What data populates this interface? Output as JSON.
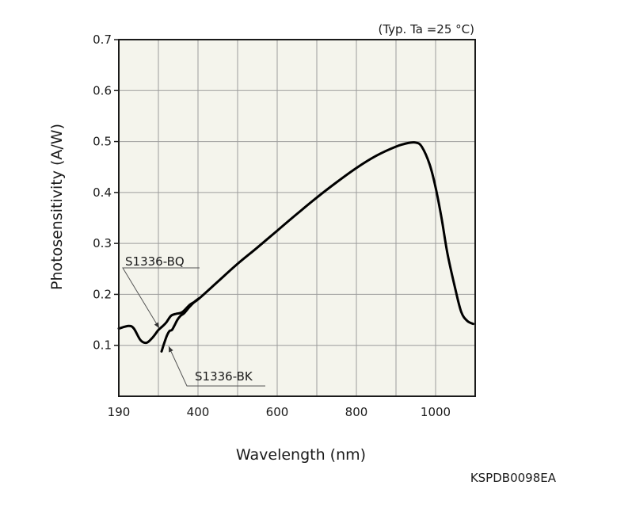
{
  "chart_data": {
    "type": "line",
    "xlabel": "Wavelength (nm)",
    "ylabel": "Photosensitivity (A/W)",
    "condition_note": "(Typ. Ta =25 °C)",
    "figure_code": "KSPDB0098EA",
    "x_ticks": [
      {
        "value": 190,
        "label": "190"
      },
      {
        "value": 400,
        "label": "400"
      },
      {
        "value": 600,
        "label": "600"
      },
      {
        "value": 800,
        "label": "800"
      },
      {
        "value": 1000,
        "label": "1000"
      }
    ],
    "y_ticks": [
      "0.1",
      "0.2",
      "0.3",
      "0.4",
      "0.5",
      "0.6",
      "0.7"
    ],
    "xlim": [
      200,
      1100
    ],
    "ylim": [
      0,
      0.7
    ],
    "x_gridlines": [
      300,
      400,
      500,
      600,
      700,
      800,
      900,
      1000
    ],
    "y_gridlines": [
      0.1,
      0.2,
      0.3,
      0.4,
      0.5,
      0.6
    ],
    "grid": true,
    "plot_background": "#f4f4ec",
    "series": [
      {
        "name": "S1336-BQ",
        "color": "#000000",
        "points": [
          [
            200,
            0.133
          ],
          [
            225,
            0.138
          ],
          [
            238,
            0.133
          ],
          [
            255,
            0.11
          ],
          [
            270,
            0.105
          ],
          [
            285,
            0.115
          ],
          [
            300,
            0.13
          ],
          [
            310,
            0.137
          ],
          [
            320,
            0.145
          ],
          [
            332,
            0.158
          ],
          [
            345,
            0.162
          ],
          [
            360,
            0.165
          ],
          [
            380,
            0.18
          ],
          [
            400,
            0.19
          ],
          [
            450,
            0.225
          ],
          [
            500,
            0.26
          ],
          [
            550,
            0.292
          ],
          [
            600,
            0.325
          ],
          [
            650,
            0.358
          ],
          [
            700,
            0.39
          ],
          [
            750,
            0.42
          ],
          [
            800,
            0.448
          ],
          [
            850,
            0.472
          ],
          [
            900,
            0.49
          ],
          [
            930,
            0.497
          ],
          [
            950,
            0.498
          ],
          [
            965,
            0.49
          ],
          [
            985,
            0.455
          ],
          [
            1000,
            0.41
          ],
          [
            1015,
            0.35
          ],
          [
            1030,
            0.28
          ],
          [
            1050,
            0.21
          ],
          [
            1065,
            0.165
          ],
          [
            1080,
            0.148
          ],
          [
            1095,
            0.142
          ]
        ]
      },
      {
        "name": "S1336-BK",
        "color": "#000000",
        "points": [
          [
            308,
            0.088
          ],
          [
            315,
            0.105
          ],
          [
            322,
            0.12
          ],
          [
            328,
            0.128
          ],
          [
            334,
            0.13
          ],
          [
            340,
            0.138
          ],
          [
            348,
            0.15
          ],
          [
            356,
            0.158
          ],
          [
            365,
            0.163
          ],
          [
            378,
            0.175
          ],
          [
            392,
            0.186
          ],
          [
            402,
            0.192
          ]
        ]
      }
    ],
    "annotations": [
      {
        "label": "S1336-BQ",
        "series": "S1336-BQ"
      },
      {
        "label": "S1336-BK",
        "series": "S1336-BK"
      }
    ]
  }
}
